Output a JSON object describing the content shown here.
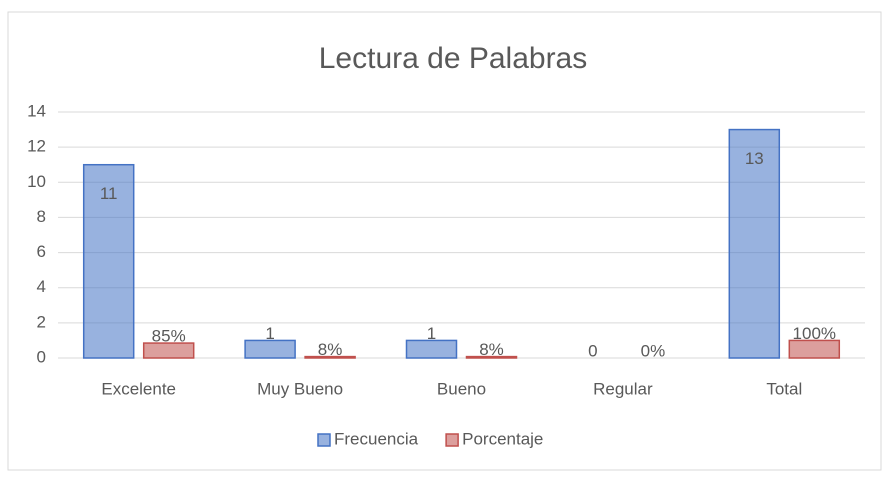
{
  "chart_data": {
    "type": "bar",
    "title": "Lectura de Palabras",
    "categories": [
      "Excelente",
      "Muy Bueno",
      "Bueno",
      "Regular",
      "Total"
    ],
    "series": [
      {
        "name": "Frecuencia",
        "color": "#4472c4",
        "values": [
          11,
          1,
          1,
          0,
          13
        ]
      },
      {
        "name": "Porcentaje",
        "color": "#c0504d",
        "values": [
          0.85,
          0.08,
          0.08,
          0,
          1
        ],
        "value_labels": [
          "85%",
          "8%",
          "8%",
          "0%",
          "100%"
        ]
      }
    ],
    "ylim": [
      0,
      14
    ],
    "yticks": [
      0,
      2,
      4,
      6,
      8,
      10,
      12,
      14
    ],
    "grid": true,
    "legend": "bottom"
  }
}
